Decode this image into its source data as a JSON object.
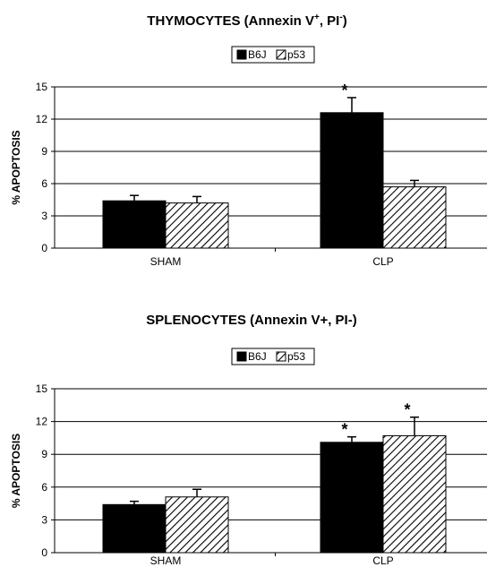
{
  "chart_data": [
    {
      "type": "bar",
      "title": "THYMOCYTES (Annexin V",
      "title_sup1": "+",
      "title_mid": ", PI",
      "title_sup2": "-",
      "title_end": ")",
      "ylabel": "% APOPTOSIS",
      "ylim": [
        0,
        15
      ],
      "yticks": [
        "0",
        "3",
        "6",
        "9",
        "12",
        "15"
      ],
      "categories": [
        "SHAM",
        "CLP"
      ],
      "series": [
        {
          "name": "B6J",
          "values": [
            4.4,
            12.6
          ],
          "errors": [
            0.5,
            1.4
          ],
          "significant": [
            false,
            true
          ],
          "fill": "#000000"
        },
        {
          "name": "p53",
          "values": [
            4.2,
            5.7
          ],
          "errors": [
            0.6,
            0.6
          ],
          "significant": [
            false,
            false
          ],
          "fill": "hatch"
        }
      ],
      "annotation": "*",
      "legend_position": "top-center",
      "grid": true
    },
    {
      "type": "bar",
      "title": "SPLENOCYTES (Annexin V+, PI-)",
      "ylabel": "% APOPTOSIS",
      "ylim": [
        0,
        15
      ],
      "yticks": [
        "0",
        "3",
        "6",
        "9",
        "12",
        "15"
      ],
      "categories": [
        "SHAM",
        "CLP"
      ],
      "series": [
        {
          "name": "B6J",
          "values": [
            4.4,
            10.1
          ],
          "errors": [
            0.3,
            0.5
          ],
          "significant": [
            false,
            true
          ],
          "fill": "#000000"
        },
        {
          "name": "p53",
          "values": [
            5.1,
            10.7
          ],
          "errors": [
            0.7,
            1.7
          ],
          "significant": [
            false,
            true
          ],
          "fill": "hatch"
        }
      ],
      "annotation": "*",
      "legend_position": "top-center",
      "grid": true
    }
  ]
}
